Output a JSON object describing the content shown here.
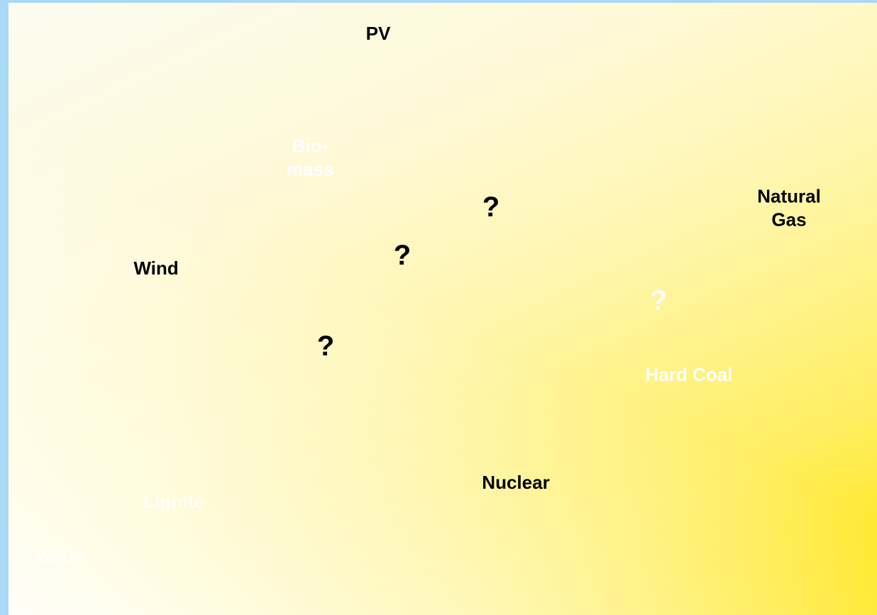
{
  "nodes": [
    {
      "label": "PV"
    },
    {
      "label": "Bio-\nmass"
    },
    {
      "label": "?"
    },
    {
      "label": "Natural\nGas"
    },
    {
      "label": "?"
    },
    {
      "label": "Wind"
    },
    {
      "label": "?"
    },
    {
      "label": "?"
    },
    {
      "label": "Hard Coal"
    },
    {
      "label": "Nuclear"
    },
    {
      "label": "Lignite"
    },
    {
      "label": "Water"
    }
  ]
}
